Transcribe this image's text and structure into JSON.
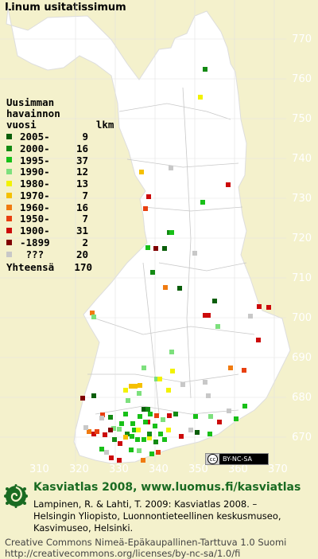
{
  "title": "Linum usitatissimum",
  "map": {
    "land_color": "#ffffff",
    "background_color": "#f4f1cc",
    "y_ticks": [
      "770",
      "760",
      "750",
      "740",
      "730",
      "720",
      "710",
      "700",
      "690",
      "680",
      "670"
    ],
    "x_ticks": [
      "310",
      "320",
      "330",
      "340",
      "350",
      "360",
      "370"
    ]
  },
  "legend": {
    "header": [
      "Uusimman",
      "havainnon",
      "vuosi          lkm"
    ],
    "rows": [
      {
        "label": "2005-",
        "count": "9",
        "color": "#0a5e0a"
      },
      {
        "label": "2000-",
        "count": "16",
        "color": "#138a13"
      },
      {
        "label": "1995-",
        "count": "37",
        "color": "#18c018"
      },
      {
        "label": "1990-",
        "count": "12",
        "color": "#7de07d"
      },
      {
        "label": "1980-",
        "count": "13",
        "color": "#f2f200"
      },
      {
        "label": "1970-",
        "count": "7",
        "color": "#f5c000"
      },
      {
        "label": "1960-",
        "count": "16",
        "color": "#f07b10"
      },
      {
        "label": "1950-",
        "count": "7",
        "color": "#e84010"
      },
      {
        "label": "1900-",
        "count": "31",
        "color": "#cc0a0a"
      },
      {
        "label": "-1899",
        "count": "2",
        "color": "#800000"
      },
      {
        "label": " ???",
        "count": "20",
        "color": "#c8c8c8"
      }
    ],
    "total_label": "Yhteensä",
    "total_count": "170"
  },
  "cc_badge": "BY-NC-SA",
  "footer": {
    "title": "Kasviatlas 2008, www.luomus.fi/kasviatlas",
    "citation": [
      "Lampinen, R. & Lahti, T. 2009: Kasviatlas 2008. –",
      "Helsingin Yliopisto, Luonnontieteellinen keskusmuseo,",
      "Kasvimuseo, Helsinki."
    ],
    "license": [
      "Creative Commons Nimeä-Epäkaupallinen-Tarttuva 1.0 Suomi",
      "http://creativecommons.org/licenses/by-nc-sa/1.0/fi"
    ]
  }
}
